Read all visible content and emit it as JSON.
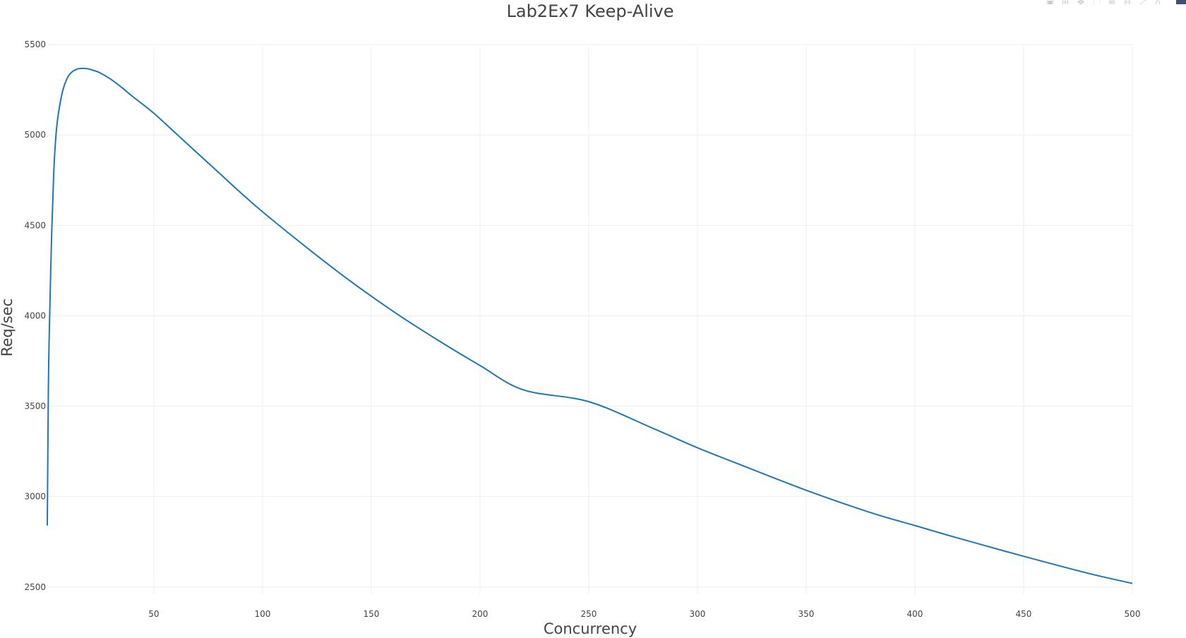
{
  "chart_data": {
    "type": "line",
    "title": "Lab2Ex7 Keep-Alive",
    "xlabel": "Concurrency",
    "ylabel": "Req/sec",
    "xlim": [
      1,
      500
    ],
    "ylim": [
      2460,
      5520
    ],
    "x_ticks": [
      50,
      100,
      150,
      200,
      250,
      300,
      350,
      400,
      450,
      500
    ],
    "x_tick_labels": [
      "50",
      "100",
      "150",
      "200",
      "250",
      "300",
      "350",
      "400",
      "450",
      "500"
    ],
    "y_ticks": [
      2500,
      3000,
      3500,
      4000,
      4500,
      5000,
      5500
    ],
    "y_tick_labels": [
      "2500",
      "3000",
      "3500",
      "4000",
      "4500",
      "5000",
      "5500"
    ],
    "grid": true,
    "legend": false,
    "series": [
      {
        "color": "#1f77b4",
        "x": [
          1,
          1.5,
          2,
          3,
          4,
          5,
          6,
          8,
          10,
          12,
          15,
          18,
          20,
          22,
          25,
          30,
          35,
          40,
          50,
          60,
          70,
          80,
          90,
          100,
          120,
          140,
          160,
          180,
          200,
          220,
          250,
          280,
          300,
          320,
          350,
          380,
          400,
          420,
          450,
          480,
          500
        ],
        "y": [
          2840,
          3600,
          3950,
          4450,
          4800,
          5000,
          5110,
          5240,
          5310,
          5345,
          5365,
          5368,
          5365,
          5358,
          5345,
          5310,
          5265,
          5215,
          5120,
          5010,
          4900,
          4790,
          4680,
          4575,
          4380,
          4195,
          4025,
          3870,
          3725,
          3590,
          3525,
          3375,
          3270,
          3175,
          3035,
          2910,
          2840,
          2770,
          2670,
          2575,
          2520
        ]
      }
    ]
  },
  "modebar": {
    "buttons": [
      {
        "icon": "camera-icon",
        "glyph": "▣"
      },
      {
        "icon": "zoom-icon",
        "glyph": "⊞"
      },
      {
        "icon": "pan-icon",
        "glyph": "✥"
      },
      {
        "icon": "box-select-icon",
        "glyph": "⬚"
      },
      {
        "icon": "zoom-in-icon",
        "glyph": "⊕"
      },
      {
        "icon": "zoom-out-icon",
        "glyph": "⊖"
      },
      {
        "icon": "autoscale-icon",
        "glyph": "⤢"
      },
      {
        "icon": "reset-axes-icon",
        "glyph": "⌂"
      }
    ],
    "logo_icon": "plotly-logo-icon"
  }
}
